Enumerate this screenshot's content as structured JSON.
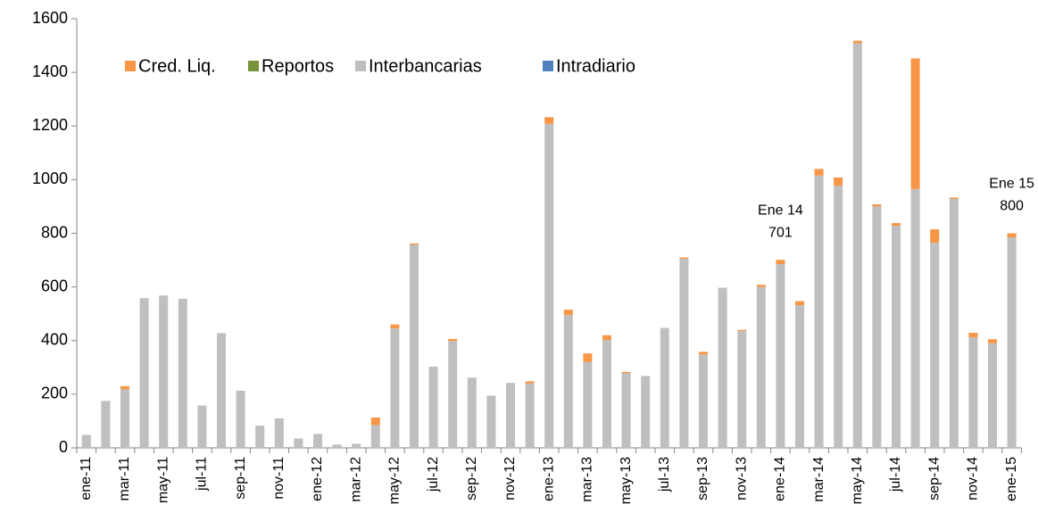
{
  "chart_data": {
    "type": "stacked_bar",
    "categories": [
      "ene-11",
      null,
      "mar-11",
      null,
      "may-11",
      null,
      "jul-11",
      null,
      "sep-11",
      null,
      "nov-11",
      null,
      "ene-12",
      null,
      "mar-12",
      null,
      "may-12",
      null,
      "jul-12",
      null,
      "sep-12",
      null,
      "nov-12",
      null,
      "ene-13",
      null,
      "mar-13",
      null,
      "may-13",
      null,
      "jul-13",
      null,
      "sep-13",
      null,
      "nov-13",
      null,
      "ene-14",
      null,
      "mar-14",
      null,
      "may-14",
      null,
      "jul-14",
      null,
      "sep-14",
      null,
      "nov-14",
      null,
      "ene-15"
    ],
    "series": [
      {
        "name": "Cred. Liq.",
        "color": "#F79646",
        "values": [
          0,
          0,
          12,
          0,
          0,
          0,
          0,
          0,
          0,
          0,
          0,
          0,
          0,
          0,
          0,
          28,
          15,
          5,
          0,
          8,
          0,
          0,
          0,
          8,
          25,
          20,
          32,
          18,
          5,
          0,
          0,
          5,
          10,
          0,
          5,
          8,
          16,
          15,
          25,
          30,
          10,
          8,
          10,
          487,
          50,
          5,
          17,
          15,
          15
        ]
      },
      {
        "name": "Reportos",
        "color": "#77933C",
        "values": [
          0,
          0,
          0,
          0,
          0,
          0,
          0,
          0,
          0,
          0,
          0,
          0,
          0,
          0,
          0,
          0,
          0,
          0,
          0,
          0,
          0,
          0,
          0,
          0,
          0,
          0,
          0,
          0,
          0,
          0,
          0,
          0,
          0,
          0,
          0,
          0,
          0,
          0,
          0,
          0,
          0,
          0,
          0,
          0,
          0,
          0,
          0,
          0,
          0
        ]
      },
      {
        "name": "Interbancarias",
        "color": "#BFBFBF",
        "values": [
          48,
          175,
          218,
          558,
          568,
          556,
          158,
          428,
          213,
          83,
          110,
          35,
          52,
          12,
          15,
          85,
          445,
          757,
          303,
          398,
          262,
          195,
          242,
          240,
          1208,
          495,
          320,
          402,
          278,
          268,
          447,
          705,
          348,
          597,
          435,
          600,
          685,
          532,
          1015,
          978,
          1508,
          900,
          828,
          965,
          765,
          928,
          412,
          390,
          785
        ]
      },
      {
        "name": "Intradiario",
        "color": "#4F81BD",
        "values": [
          0,
          0,
          0,
          0,
          0,
          0,
          0,
          0,
          0,
          0,
          0,
          0,
          0,
          0,
          0,
          0,
          0,
          0,
          0,
          0,
          0,
          0,
          0,
          0,
          0,
          0,
          0,
          0,
          0,
          0,
          0,
          0,
          0,
          0,
          0,
          0,
          0,
          0,
          0,
          0,
          0,
          0,
          0,
          0,
          0,
          0,
          0,
          0,
          0
        ]
      }
    ],
    "ylim": [
      0,
      1600
    ],
    "yticks": [
      0,
      200,
      400,
      600,
      800,
      1000,
      1200,
      1400,
      1600
    ],
    "grid": false,
    "legend": "top",
    "annotations": [
      {
        "category": "ene-14",
        "label": "Ene 14",
        "value": 701
      },
      {
        "category": "ene-15",
        "label": "Ene 15",
        "value": 800
      }
    ]
  }
}
